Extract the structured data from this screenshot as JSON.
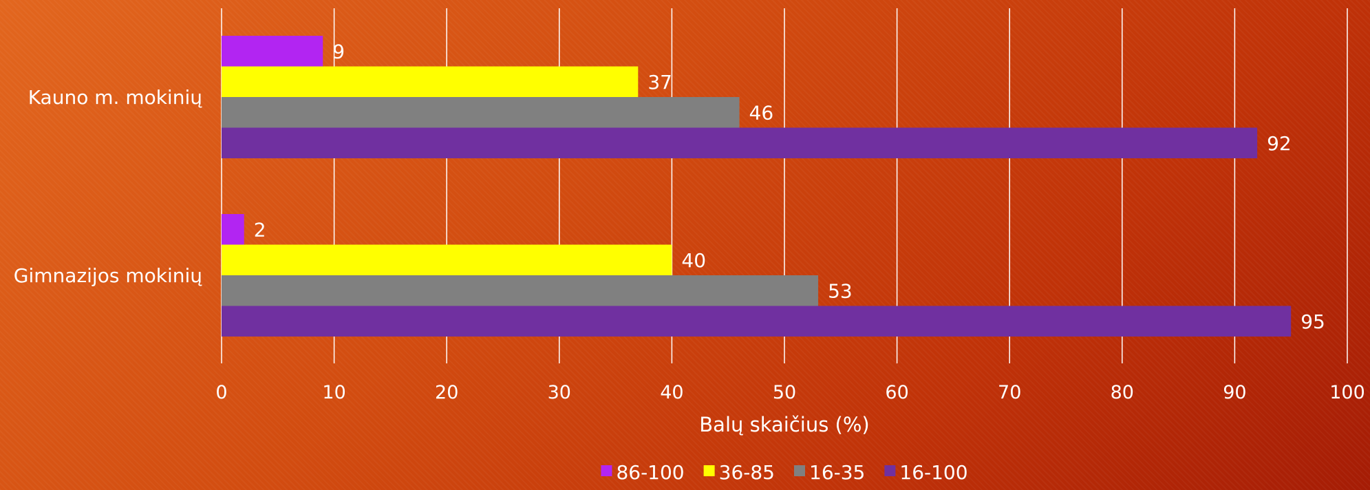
{
  "chart_data": {
    "type": "bar",
    "orientation": "horizontal",
    "title": "",
    "xlabel": "Balų skaičius (%)",
    "ylabel": "",
    "xlim": [
      0,
      100
    ],
    "x_ticks": [
      0,
      10,
      20,
      30,
      40,
      50,
      60,
      70,
      80,
      90,
      100
    ],
    "x_tick_labels": [
      "0",
      "10",
      "20",
      "30",
      "40",
      "50",
      "60",
      "70",
      "80",
      "90",
      "100"
    ],
    "grid": true,
    "legend_position": "bottom",
    "categories": [
      "Kauno m. mokinių",
      "Gimnazijos mokinių"
    ],
    "series": [
      {
        "name": "86-100",
        "color": "#b225f2",
        "values": [
          9,
          2
        ]
      },
      {
        "name": "36-85",
        "color": "#ffff00",
        "values": [
          37,
          40
        ]
      },
      {
        "name": "16-35",
        "color": "#808080",
        "values": [
          46,
          53
        ]
      },
      {
        "name": "16-100",
        "color": "#7030a0",
        "values": [
          92,
          95
        ]
      }
    ],
    "data_labels": [
      [
        "9",
        "2"
      ],
      [
        "37",
        "40"
      ],
      [
        "46",
        "53"
      ],
      [
        "92",
        "95"
      ]
    ]
  },
  "colors": {
    "gridline": "#ffffff",
    "text": "#ffffff"
  }
}
